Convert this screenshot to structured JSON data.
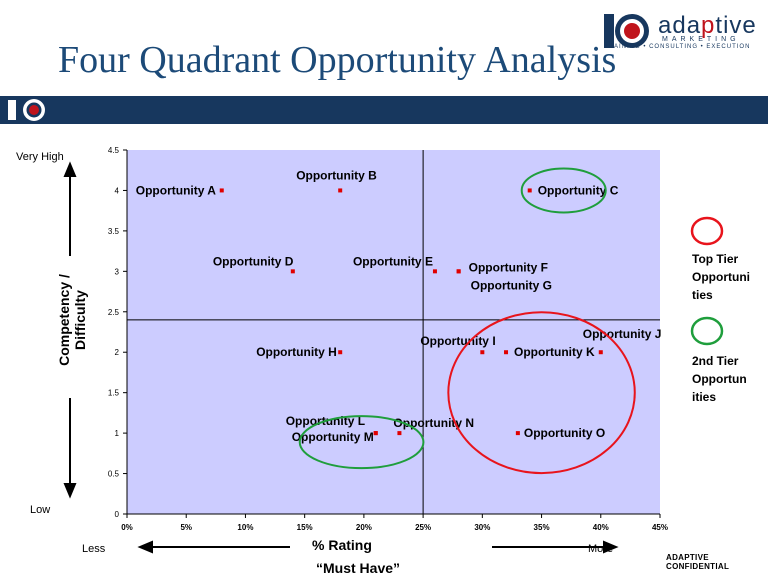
{
  "slide": {
    "title": "Four Quadrant Opportunity Analysis",
    "logo_word_a": "ada",
    "logo_word_p": "p",
    "logo_word_b": "tive",
    "logo_sub": "MARKETING",
    "logo_tag": "TRAINING • CONSULTING • EXECUTION",
    "confidential": "ADAPTIVE CONFIDENTIAL",
    "y_high": "Very High",
    "y_low": "Low",
    "x_low": "Less",
    "x_high": "More",
    "x_label": "% Rating",
    "x_sublabel": "“Must Have”",
    "y_label_line1": "Competency /",
    "y_label_line2": "Difficulty",
    "legend": {
      "top_tier": [
        "Top Tier",
        "Opportuni",
        "ties"
      ],
      "second_tier": [
        "2nd Tier",
        "Opportun",
        "ities"
      ]
    }
  },
  "colors": {
    "plot_bg": "#ccccff",
    "marker": "#e00000",
    "top_tier": "#e8141c",
    "second_tier": "#1f9e3c",
    "title": "#1c4a78",
    "banner": "#17375e"
  },
  "chart_data": {
    "type": "scatter",
    "xlabel": "% Rating",
    "ylabel": "Competency / Difficulty",
    "xlim": [
      0,
      45
    ],
    "ylim": [
      0,
      4.5
    ],
    "x_ticks": [
      "0%",
      "5%",
      "10%",
      "15%",
      "20%",
      "25%",
      "30%",
      "35%",
      "40%",
      "45%"
    ],
    "y_ticks": [
      "0",
      "0.5",
      "1",
      "1.5",
      "2",
      "2.5",
      "3",
      "3.5",
      "4",
      "4.5"
    ],
    "quadrant_divider": {
      "x": 25,
      "y": 2.4
    },
    "points": [
      {
        "label": "Opportunity A",
        "x": 8,
        "y": 4
      },
      {
        "label": "Opportunity B",
        "x": 18,
        "y": 4
      },
      {
        "label": "Opportunity C",
        "x": 34,
        "y": 4
      },
      {
        "label": "Opportunity D",
        "x": 14,
        "y": 3
      },
      {
        "label": "Opportunity E",
        "x": 26,
        "y": 3
      },
      {
        "label": "Opportunity F",
        "x": 28,
        "y": 3
      },
      {
        "label": "Opportunity G",
        "x": 28,
        "y": 3
      },
      {
        "label": "Opportunity H",
        "x": 18,
        "y": 2
      },
      {
        "label": "Opportunity I",
        "x": 30,
        "y": 2
      },
      {
        "label": "Opportunity J",
        "x": 40,
        "y": 2
      },
      {
        "label": "Opportunity K",
        "x": 32,
        "y": 2
      },
      {
        "label": "Opportunity L",
        "x": 21,
        "y": 1
      },
      {
        "label": "Opportunity M",
        "x": 21,
        "y": 1
      },
      {
        "label": "Opportunity N",
        "x": 23,
        "y": 1
      },
      {
        "label": "Opportunity O",
        "x": 33,
        "y": 1
      }
    ],
    "groups": [
      {
        "tier": "Top Tier Opportunities",
        "members": [
          "Opportunity I",
          "Opportunity J",
          "Opportunity K",
          "Opportunity O"
        ]
      },
      {
        "tier": "2nd Tier Opportunities",
        "members": [
          "Opportunity C"
        ]
      },
      {
        "tier": "2nd Tier Opportunities",
        "members": [
          "Opportunity L",
          "Opportunity M",
          "Opportunity N"
        ]
      }
    ]
  }
}
